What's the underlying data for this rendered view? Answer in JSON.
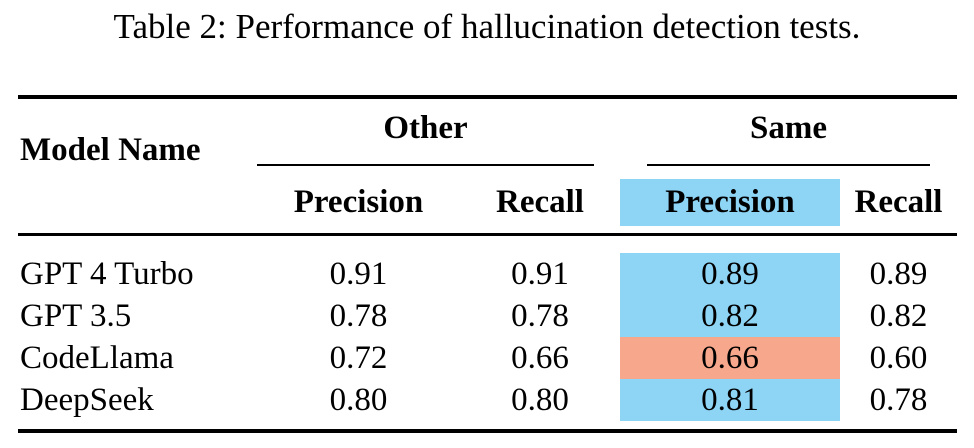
{
  "caption": "Table 2: Performance of hallucination detection tests.",
  "table": {
    "header": {
      "model_name": "Model Name",
      "groups": [
        {
          "label": "Other",
          "precision": "Precision",
          "recall": "Recall"
        },
        {
          "label": "Same",
          "precision": "Precision",
          "recall": "Recall"
        }
      ]
    },
    "rows": [
      {
        "model": "GPT 4 Turbo",
        "other_precision": "0.91",
        "other_recall": "0.91",
        "same_precision": "0.89",
        "same_recall": "0.89"
      },
      {
        "model": "GPT 3.5",
        "other_precision": "0.78",
        "other_recall": "0.78",
        "same_precision": "0.82",
        "same_recall": "0.82"
      },
      {
        "model": "CodeLlama",
        "other_precision": "0.72",
        "other_recall": "0.66",
        "same_precision": "0.66",
        "same_recall": "0.60"
      },
      {
        "model": "DeepSeek",
        "other_precision": "0.80",
        "other_recall": "0.80",
        "same_precision": "0.81",
        "same_recall": "0.78"
      }
    ],
    "cell_colors": {
      "blue": "#8DD4F5",
      "salmon": "#F7A78B",
      "header_same_precision": "#8DD4F5",
      "rows": [
        "#8DD4F5",
        "#8DD4F5",
        "#F7A78B",
        "#8DD4F5"
      ]
    }
  }
}
